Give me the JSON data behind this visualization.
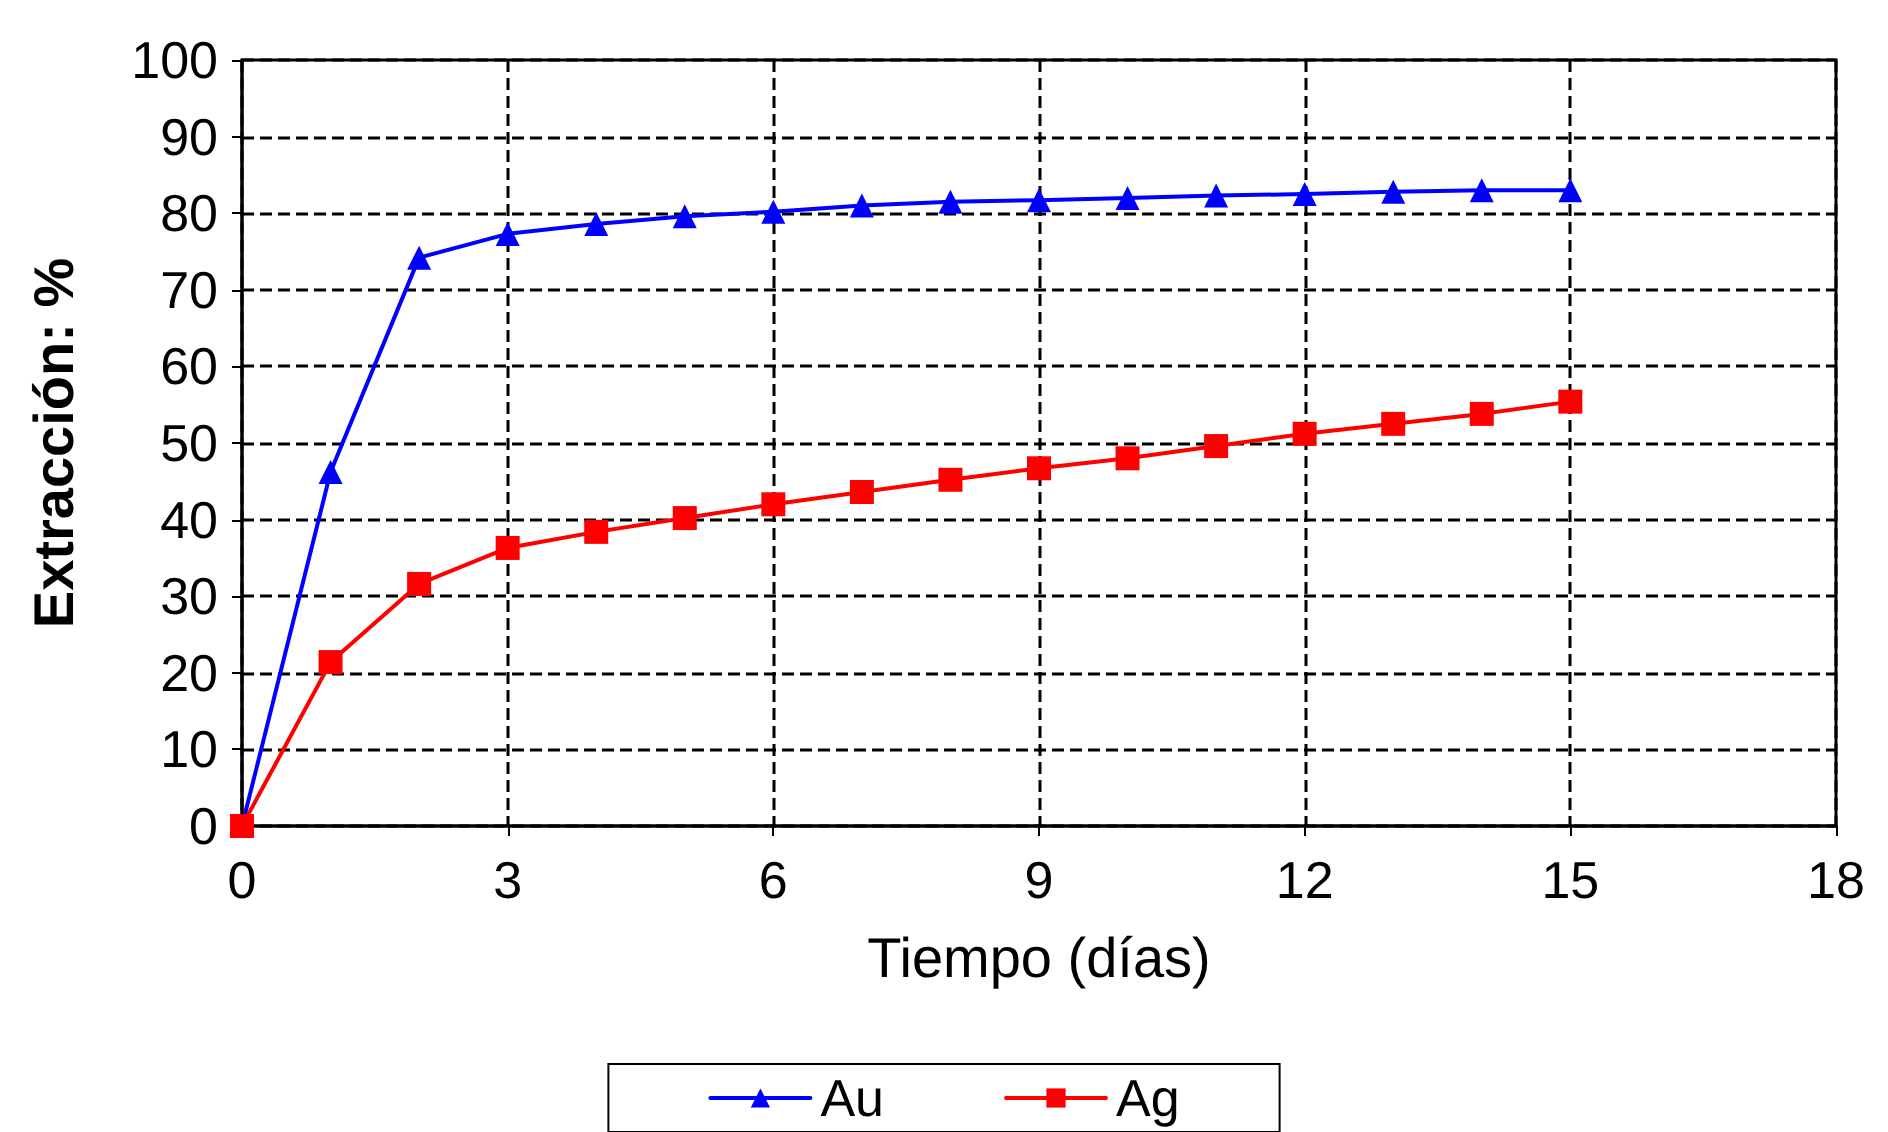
{
  "chart_data": {
    "type": "line",
    "xlabel": "Tiempo (días)",
    "ylabel": "Extracción: %",
    "x": [
      0,
      1,
      2,
      3,
      4,
      5,
      6,
      7,
      8,
      9,
      10,
      11,
      12,
      13,
      14,
      15
    ],
    "series": [
      {
        "name": "Au",
        "color": "#0000ff",
        "marker": "triangle",
        "values": [
          0,
          46.2,
          74.2,
          77.3,
          78.6,
          79.6,
          80.2,
          81,
          81.5,
          81.7,
          82,
          82.3,
          82.5,
          82.8,
          83,
          83
        ]
      },
      {
        "name": "Ag",
        "color": "#ff0000",
        "marker": "square",
        "values": [
          0,
          21.4,
          31.6,
          36.3,
          38.4,
          40.2,
          42,
          43.6,
          45.2,
          46.7,
          48,
          49.6,
          51.2,
          52.5,
          53.8,
          55.4
        ]
      }
    ],
    "xlim": [
      0,
      18
    ],
    "xticks": [
      0,
      3,
      6,
      9,
      12,
      15,
      18
    ],
    "ylim": [
      0,
      100
    ],
    "yticks": [
      0,
      10,
      20,
      30,
      40,
      50,
      60,
      70,
      80,
      90,
      100
    ],
    "grid": true,
    "legend": "bottom"
  }
}
